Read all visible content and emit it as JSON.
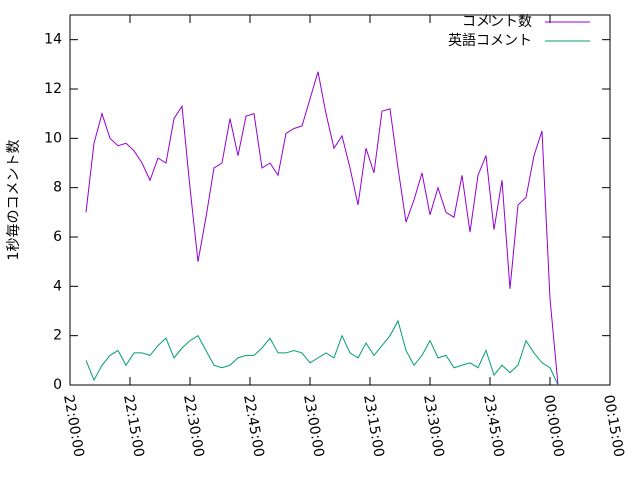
{
  "chart_data": {
    "type": "line",
    "ylabel": "1秒毎のコメント数",
    "x": [
      "22:04:00",
      "22:06:00",
      "22:08:00",
      "22:10:00",
      "22:12:00",
      "22:14:00",
      "22:16:00",
      "22:18:00",
      "22:20:00",
      "22:22:00",
      "22:24:00",
      "22:26:00",
      "22:28:00",
      "22:30:00",
      "22:32:00",
      "22:34:00",
      "22:36:00",
      "22:38:00",
      "22:40:00",
      "22:42:00",
      "22:44:00",
      "22:46:00",
      "22:48:00",
      "22:50:00",
      "22:52:00",
      "22:54:00",
      "22:56:00",
      "22:58:00",
      "23:00:00",
      "23:02:00",
      "23:04:00",
      "23:06:00",
      "23:08:00",
      "23:10:00",
      "23:12:00",
      "23:14:00",
      "23:16:00",
      "23:18:00",
      "23:20:00",
      "23:22:00",
      "23:24:00",
      "23:26:00",
      "23:28:00",
      "23:30:00",
      "23:32:00",
      "23:34:00",
      "23:36:00",
      "23:38:00",
      "23:40:00",
      "23:42:00",
      "23:44:00",
      "23:46:00",
      "23:48:00",
      "23:50:00",
      "23:52:00",
      "23:54:00",
      "23:56:00",
      "23:58:00",
      "00:00:00",
      "00:02:00"
    ],
    "series": [
      {
        "name": "コメント数",
        "color": "#9400d3",
        "values": [
          7.0,
          9.8,
          11.0,
          10.0,
          9.7,
          9.8,
          9.5,
          9.0,
          8.3,
          9.2,
          9.0,
          10.8,
          11.3,
          8.0,
          5.0,
          6.8,
          8.8,
          9.0,
          10.8,
          9.3,
          10.9,
          11.0,
          8.8,
          9.0,
          8.5,
          10.2,
          10.4,
          10.5,
          11.6,
          12.7,
          11.0,
          9.6,
          10.1,
          8.8,
          7.3,
          9.6,
          8.6,
          11.1,
          11.2,
          8.8,
          6.6,
          7.5,
          8.6,
          6.9,
          8.0,
          7.0,
          6.8,
          8.5,
          6.2,
          8.5,
          9.3,
          6.3,
          8.3,
          3.9,
          7.3,
          7.6,
          9.3,
          10.3,
          3.5,
          0
        ]
      },
      {
        "name": "英語コメント",
        "color": "#009e73",
        "values": [
          1.0,
          0.2,
          0.8,
          1.2,
          1.4,
          0.8,
          1.3,
          1.3,
          1.2,
          1.6,
          1.9,
          1.1,
          1.5,
          1.8,
          2.0,
          1.4,
          0.8,
          0.7,
          0.8,
          1.1,
          1.2,
          1.2,
          1.5,
          1.9,
          1.3,
          1.3,
          1.4,
          1.3,
          0.9,
          1.1,
          1.3,
          1.1,
          2.0,
          1.3,
          1.1,
          1.7,
          1.2,
          1.6,
          2.0,
          2.6,
          1.4,
          0.8,
          1.2,
          1.8,
          1.1,
          1.2,
          0.7,
          0.8,
          0.9,
          0.7,
          1.4,
          0.4,
          0.8,
          0.5,
          0.8,
          1.8,
          1.3,
          0.9,
          0.7,
          0
        ]
      }
    ],
    "xlim": [
      "22:00:00",
      "00:15:00"
    ],
    "xticks": [
      "22:00:00",
      "22:15:00",
      "22:30:00",
      "22:45:00",
      "23:00:00",
      "23:15:00",
      "23:30:00",
      "23:45:00",
      "00:00:00",
      "00:15:00"
    ],
    "ylim": [
      0,
      15
    ],
    "yticks": [
      0,
      2,
      4,
      6,
      8,
      10,
      12,
      14
    ],
    "legend": "top-right"
  }
}
